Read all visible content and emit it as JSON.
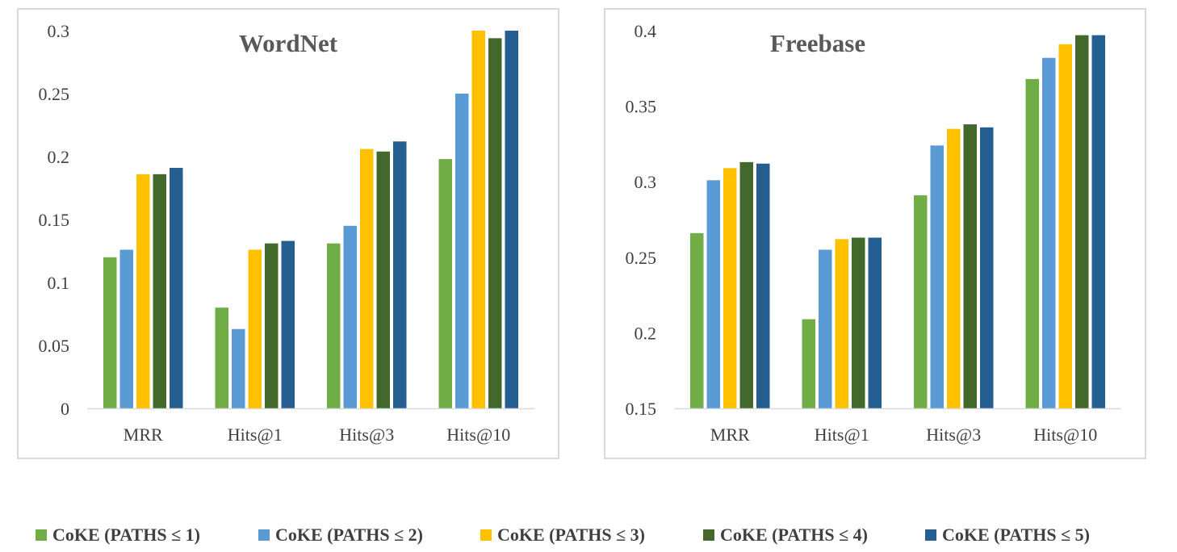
{
  "chart_data": [
    {
      "type": "bar",
      "title": "WordNet",
      "categories": [
        "MRR",
        "Hits@1",
        "Hits@3",
        "Hits@10"
      ],
      "ylim": [
        0,
        0.3
      ],
      "yticks": [
        "0",
        "0.05",
        "0.1",
        "0.15",
        "0.2",
        "0.25",
        "0.3"
      ],
      "grid": false,
      "legend": "bottom",
      "series": [
        {
          "name": "CoKE (PATHS ≤ 1)",
          "color": "#70ad47",
          "values": [
            0.12,
            0.08,
            0.131,
            0.198
          ]
        },
        {
          "name": "CoKE (PATHS ≤ 2)",
          "color": "#5b9bd5",
          "values": [
            0.126,
            0.063,
            0.145,
            0.25
          ]
        },
        {
          "name": "CoKE (PATHS ≤ 3)",
          "color": "#ffc000",
          "values": [
            0.186,
            0.126,
            0.206,
            0.3
          ]
        },
        {
          "name": "CoKE (PATHS ≤ 4)",
          "color": "#43682b",
          "values": [
            0.186,
            0.131,
            0.204,
            0.294
          ]
        },
        {
          "name": "CoKE (PATHS ≤ 5)",
          "color": "#255e91",
          "values": [
            0.191,
            0.133,
            0.212,
            0.3
          ]
        }
      ]
    },
    {
      "type": "bar",
      "title": "Freebase",
      "categories": [
        "MRR",
        "Hits@1",
        "Hits@3",
        "Hits@10"
      ],
      "ylim": [
        0.15,
        0.4
      ],
      "yticks": [
        "0.15",
        "0.2",
        "0.25",
        "0.3",
        "0.35",
        "0.4"
      ],
      "grid": false,
      "legend": "bottom",
      "series": [
        {
          "name": "CoKE (PATHS ≤ 1)",
          "color": "#70ad47",
          "values": [
            0.266,
            0.209,
            0.291,
            0.368
          ]
        },
        {
          "name": "CoKE (PATHS ≤ 2)",
          "color": "#5b9bd5",
          "values": [
            0.301,
            0.255,
            0.324,
            0.382
          ]
        },
        {
          "name": "CoKE (PATHS ≤ 3)",
          "color": "#ffc000",
          "values": [
            0.309,
            0.262,
            0.335,
            0.391
          ]
        },
        {
          "name": "CoKE (PATHS ≤ 4)",
          "color": "#43682b",
          "values": [
            0.313,
            0.263,
            0.338,
            0.397
          ]
        },
        {
          "name": "CoKE (PATHS ≤ 5)",
          "color": "#255e91",
          "values": [
            0.312,
            0.263,
            0.336,
            0.397
          ]
        }
      ]
    }
  ],
  "legend": {
    "items": [
      {
        "label": "CoKE (PATHS ≤ 1)",
        "color": "#70ad47"
      },
      {
        "label": "CoKE (PATHS ≤ 2)",
        "color": "#5b9bd5"
      },
      {
        "label": "CoKE (PATHS ≤ 3)",
        "color": "#ffc000"
      },
      {
        "label": "CoKE (PATHS ≤ 4)",
        "color": "#43682b"
      },
      {
        "label": "CoKE (PATHS ≤ 5)",
        "color": "#255e91"
      }
    ]
  }
}
